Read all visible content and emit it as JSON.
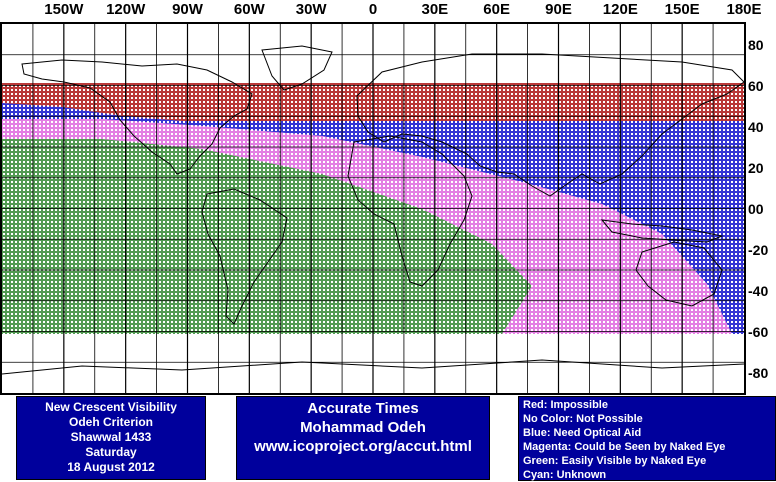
{
  "map": {
    "title_box": {
      "line1": "New Crescent Visibility",
      "line2": "Odeh Criterion",
      "line3": "Shawwal 1433",
      "line4": "Saturday",
      "line5": "18 August 2012"
    },
    "credits_box": {
      "line1": "Accurate Times",
      "line2": "Mohammad Odeh",
      "line3": "www.icoproject.org/accut.html"
    },
    "legend": [
      {
        "key": "red",
        "text": "Red: Impossible",
        "color": "#b22222"
      },
      {
        "key": "none",
        "text": "No Color: Not Possible",
        "color": "#ffffff"
      },
      {
        "key": "blue",
        "text": "Blue: Need Optical Aid",
        "color": "#1f1fd0"
      },
      {
        "key": "magenta",
        "text": "Magenta: Could be Seen by Naked Eye",
        "color": "#e070e0"
      },
      {
        "key": "green",
        "text": "Green: Easily Visible by Naked Eye",
        "color": "#3f8f3f"
      },
      {
        "key": "cyan",
        "text": "Cyan: Unknown",
        "color": "#00ffff"
      }
    ],
    "longitude_labels": [
      {
        "text": "150W",
        "lon": -150
      },
      {
        "text": "120W",
        "lon": -120
      },
      {
        "text": "90W",
        "lon": -90
      },
      {
        "text": "60W",
        "lon": -60
      },
      {
        "text": "30W",
        "lon": -30
      },
      {
        "text": "0",
        "lon": 0
      },
      {
        "text": "30E",
        "lon": 30
      },
      {
        "text": "60E",
        "lon": 60
      },
      {
        "text": "90E",
        "lon": 90
      },
      {
        "text": "120E",
        "lon": 120
      },
      {
        "text": "150E",
        "lon": 150
      },
      {
        "text": "180E",
        "lon": 180
      }
    ],
    "latitude_labels": [
      {
        "text": "80",
        "lat": 80
      },
      {
        "text": "60",
        "lat": 60
      },
      {
        "text": "40",
        "lat": 40
      },
      {
        "text": "20",
        "lat": 20
      },
      {
        "text": "00",
        "lat": 0
      },
      {
        "text": "-20",
        "lat": -20
      },
      {
        "text": "-40",
        "lat": -40
      },
      {
        "text": "-60",
        "lat": -60
      },
      {
        "text": "-80",
        "lat": -80
      }
    ],
    "lon_range": [
      -180,
      180
    ],
    "lat_range": [
      -90,
      90
    ],
    "grid_spacing_deg": 15,
    "colors": {
      "red": "#b22222",
      "blue": "#1f1fd0",
      "magenta": "#e070e0",
      "green": "#3f8f3f",
      "land_outline": "#000000",
      "box_bg": "#00009c"
    }
  }
}
